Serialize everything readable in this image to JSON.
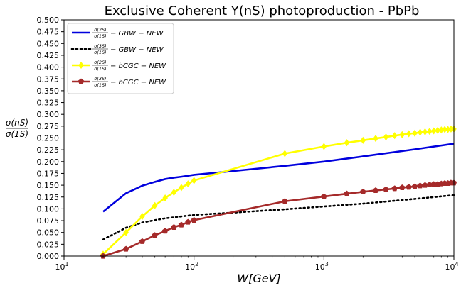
{
  "chart_data": {
    "type": "line",
    "title": "Exclusive Coherent Υ(nS) photoproduction - PbPb",
    "xlabel": "W[GeV]",
    "ylabel_num": "σ(nS)",
    "ylabel_den": "σ(1S)",
    "xscale": "log",
    "xlim": [
      10,
      10000
    ],
    "ylim": [
      0,
      0.5
    ],
    "x_ticks": [
      {
        "base": "10",
        "exp": "1",
        "value": 10
      },
      {
        "base": "10",
        "exp": "2",
        "value": 100
      },
      {
        "base": "10",
        "exp": "3",
        "value": 1000
      },
      {
        "base": "10",
        "exp": "4",
        "value": 10000
      }
    ],
    "y_ticks": [
      "0.000",
      "0.025",
      "0.050",
      "0.075",
      "0.100",
      "0.125",
      "0.150",
      "0.175",
      "0.200",
      "0.225",
      "0.250",
      "0.275",
      "0.300",
      "0.325",
      "0.350",
      "0.375",
      "0.400",
      "0.425",
      "0.450",
      "0.475",
      "0.500"
    ],
    "grid": false,
    "legend_position": "top-left",
    "series": [
      {
        "name": "GBW-NEW (2S)",
        "legend_num": "σ(2S)",
        "legend_den": "σ(1S)",
        "legend_suffix": "− GBW − NEW",
        "color": "#0000dd",
        "style": "solid",
        "marker": "none",
        "x": [
          20,
          30,
          40,
          50,
          60,
          70,
          80,
          100,
          200,
          500,
          1000,
          2000,
          5000,
          10000
        ],
        "y": [
          0.094,
          0.133,
          0.149,
          0.157,
          0.163,
          0.166,
          0.168,
          0.172,
          0.18,
          0.191,
          0.2,
          0.211,
          0.226,
          0.238
        ]
      },
      {
        "name": "GBW-NEW (3S)",
        "legend_num": "σ(3S)",
        "legend_den": "σ(1S)",
        "legend_suffix": "− GBW − NEW",
        "color": "#000000",
        "style": "dotted",
        "marker": "none",
        "x": [
          20,
          30,
          40,
          50,
          60,
          70,
          80,
          100,
          200,
          500,
          1000,
          2000,
          5000,
          10000
        ],
        "y": [
          0.035,
          0.06,
          0.071,
          0.076,
          0.08,
          0.082,
          0.084,
          0.087,
          0.092,
          0.099,
          0.105,
          0.111,
          0.121,
          0.129
        ]
      },
      {
        "name": "bCGC-NEW (2S)",
        "legend_num": "σ(2S)",
        "legend_den": "σ(1S)",
        "legend_suffix": "− bCGC − NEW",
        "color": "#ffff00",
        "style": "solid",
        "marker": "diamond",
        "x": [
          20,
          30,
          40,
          50,
          60,
          70,
          80,
          90,
          100,
          500,
          1000,
          1500,
          2000,
          2500,
          3000,
          3500,
          4000,
          4500,
          5000,
          5500,
          6000,
          6500,
          7000,
          7500,
          8000,
          8500,
          9000,
          9500,
          10000
        ],
        "y": [
          0.004,
          0.05,
          0.084,
          0.107,
          0.123,
          0.135,
          0.145,
          0.153,
          0.16,
          0.217,
          0.232,
          0.24,
          0.245,
          0.249,
          0.252,
          0.255,
          0.257,
          0.259,
          0.26,
          0.262,
          0.263,
          0.264,
          0.265,
          0.266,
          0.267,
          0.268,
          0.268,
          0.269,
          0.269
        ]
      },
      {
        "name": "bCGC-NEW (3S)",
        "legend_num": "σ(3S)",
        "legend_den": "σ(1S)",
        "legend_suffix": "− bCGC − NEW",
        "color": "#a52a2a",
        "style": "solid",
        "marker": "pentagon",
        "x": [
          20,
          30,
          40,
          50,
          60,
          70,
          80,
          90,
          100,
          500,
          1000,
          1500,
          2000,
          2500,
          3000,
          3500,
          4000,
          4500,
          5000,
          5500,
          6000,
          6500,
          7000,
          7500,
          8000,
          8500,
          9000,
          9500,
          10000
        ],
        "y": [
          0.0,
          0.015,
          0.031,
          0.044,
          0.053,
          0.061,
          0.066,
          0.072,
          0.076,
          0.116,
          0.126,
          0.132,
          0.136,
          0.139,
          0.141,
          0.143,
          0.145,
          0.146,
          0.147,
          0.149,
          0.15,
          0.151,
          0.152,
          0.152,
          0.153,
          0.154,
          0.154,
          0.155,
          0.155
        ]
      }
    ]
  }
}
